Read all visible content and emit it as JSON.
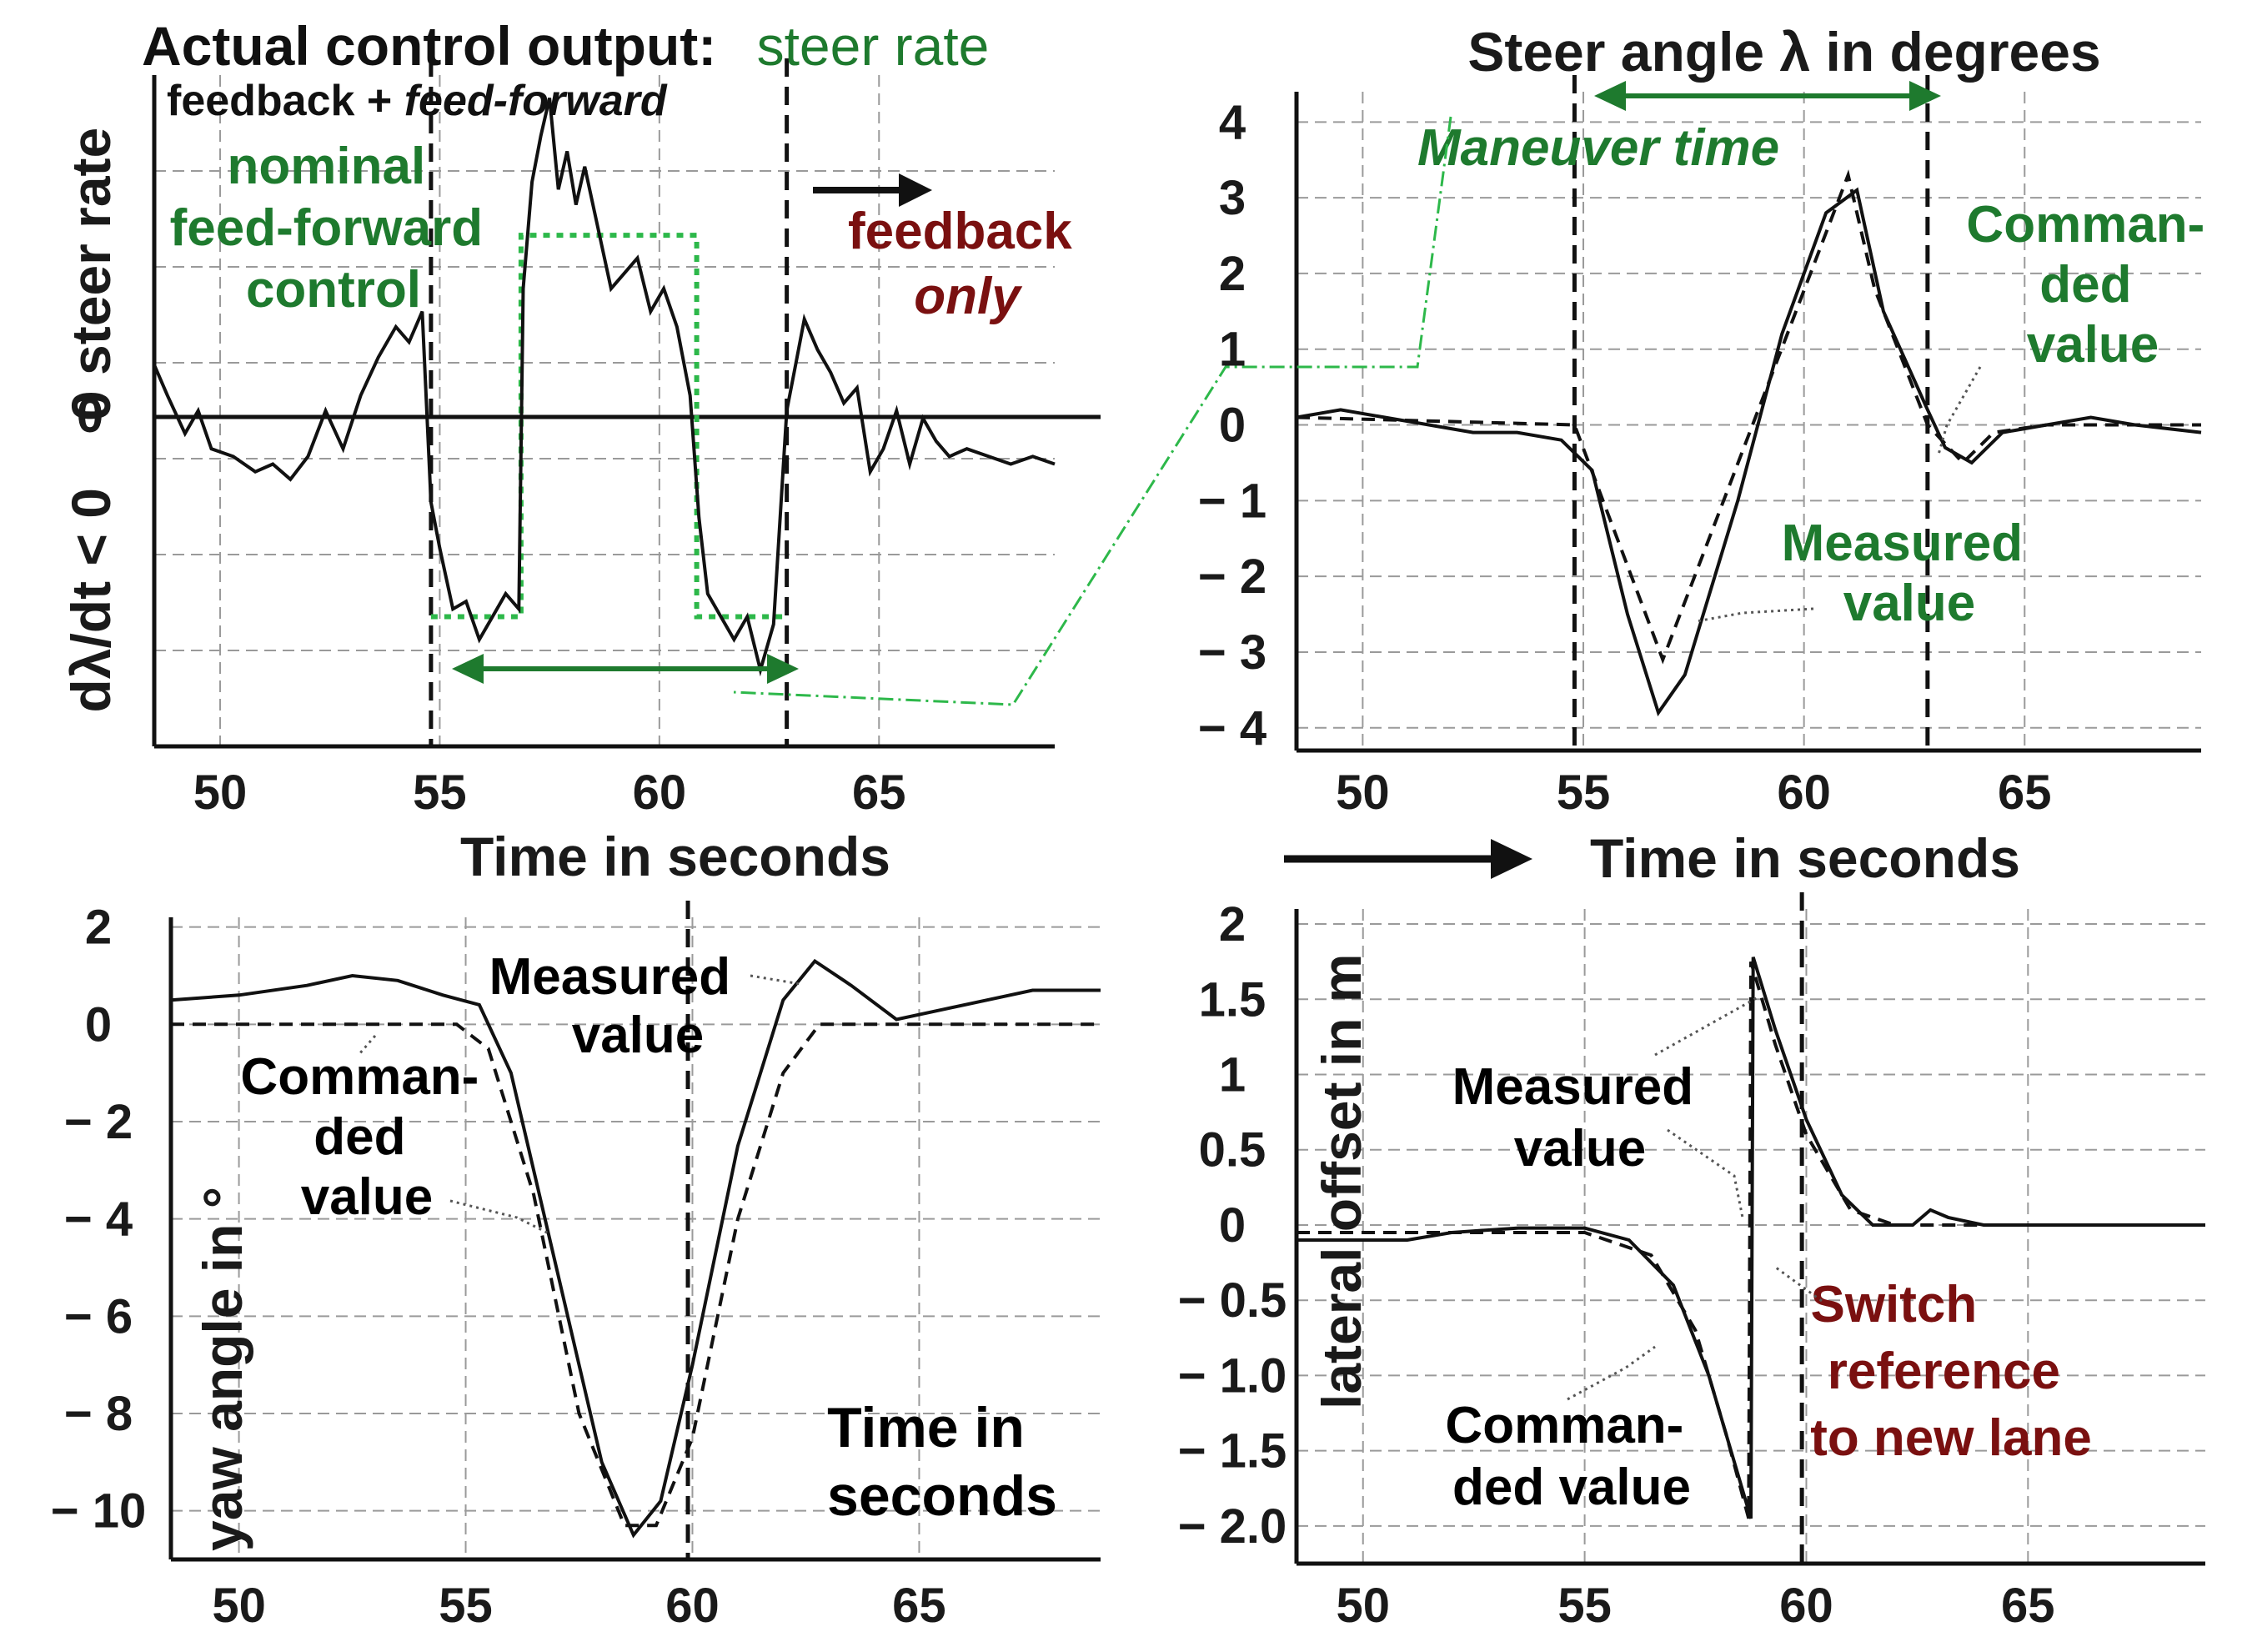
{
  "colors": {
    "green": "#1e7a2e",
    "darkred": "#7a1010",
    "ink": "#111111",
    "grid": "#9a9a9a",
    "bright_green": "#2db84a"
  },
  "chart_data": [
    {
      "id": "steer-rate",
      "type": "line",
      "title": "Actual control output: steer rate",
      "title_parts": {
        "black": "Actual control output:",
        "green": "steer rate"
      },
      "ylabel_top": "0 steer rate",
      "ylabel_bottom": "dλ/dt < 0",
      "xlabel": "Time in seconds",
      "xticks": [
        "50",
        "55",
        "60",
        "65"
      ],
      "xlim": [
        48.5,
        69
      ],
      "ylim": [
        -4.2,
        4.6
      ],
      "zero_label": "0",
      "vlines": [
        54.8,
        62.9
      ],
      "annotations": {
        "fb_ff": {
          "plain": "feedback + ",
          "italic": "feed-forward"
        },
        "nominal": [
          "nominal",
          "feed-forward",
          "control"
        ],
        "feedback_only": [
          "feedback",
          "only"
        ]
      },
      "nominal_feedforward": {
        "x": [
          54.8,
          56.85,
          56.85,
          60.85,
          60.85,
          62.9
        ],
        "y": [
          -2.5,
          -2.5,
          2.5,
          2.5,
          -2.5,
          -2.5
        ]
      },
      "series": [
        {
          "name": "steer rate",
          "x": [
            48.5,
            48.8,
            49.2,
            49.5,
            49.8,
            50.3,
            50.8,
            51.2,
            51.6,
            52.0,
            52.4,
            52.8,
            53.2,
            53.6,
            54.0,
            54.3,
            54.6,
            54.8,
            55.0,
            55.3,
            55.6,
            55.9,
            56.2,
            56.5,
            56.8,
            56.9,
            57.1,
            57.3,
            57.5,
            57.7,
            57.9,
            58.1,
            58.3,
            58.6,
            58.9,
            59.2,
            59.5,
            59.8,
            60.1,
            60.4,
            60.7,
            60.9,
            61.1,
            61.4,
            61.7,
            62.0,
            62.3,
            62.6,
            62.9,
            63.1,
            63.3,
            63.6,
            63.9,
            64.2,
            64.5,
            64.8,
            65.1,
            65.4,
            65.7,
            66.0,
            66.3,
            66.6,
            67.0,
            67.5,
            68.0,
            68.5,
            69.0
          ],
          "values": [
            0.8,
            0.4,
            -0.1,
            0.2,
            -0.3,
            -0.4,
            -0.6,
            -0.5,
            -0.7,
            -0.4,
            0.2,
            -0.3,
            0.4,
            0.9,
            1.3,
            1.1,
            1.5,
            -1.0,
            -1.6,
            -2.4,
            -2.3,
            -2.8,
            -2.5,
            -2.2,
            -2.4,
            1.8,
            3.2,
            3.8,
            4.3,
            3.1,
            3.6,
            2.9,
            3.4,
            2.6,
            1.8,
            2.0,
            2.2,
            1.5,
            1.8,
            1.3,
            0.4,
            -1.2,
            -2.2,
            -2.5,
            -2.8,
            -2.5,
            -3.2,
            -2.6,
            0.2,
            0.8,
            1.4,
            1.0,
            0.7,
            0.3,
            0.5,
            -0.6,
            -0.3,
            0.2,
            -0.5,
            0.1,
            -0.2,
            -0.4,
            -0.3,
            -0.4,
            -0.5,
            -0.4,
            -0.5
          ]
        }
      ]
    },
    {
      "id": "steer-angle",
      "type": "line",
      "title": "Steer angle λ in degrees",
      "xlabel": "Time in seconds",
      "xticks": [
        "50",
        "55",
        "60",
        "65"
      ],
      "yticks": [
        "4",
        "3",
        "2",
        "1",
        "0",
        "− 1",
        "− 2",
        "− 3",
        "− 4"
      ],
      "xlim": [
        48.5,
        69
      ],
      "ylim": [
        -4.3,
        4.4
      ],
      "vlines": [
        54.8,
        62.8
      ],
      "maneuver_label": "Maneuver time",
      "annotations": {
        "commanded": [
          "Comman-",
          "ded",
          "value"
        ],
        "measured": [
          "Measured",
          "value"
        ]
      },
      "series": [
        {
          "name": "Commanded value",
          "style": "dashed",
          "x": [
            48.5,
            54.8,
            56.8,
            61.0,
            61.6,
            62.8,
            63.6,
            64.3,
            65.5,
            69.0
          ],
          "values": [
            0.1,
            0.0,
            -3.1,
            3.3,
            1.8,
            0.0,
            -0.5,
            -0.1,
            0.0,
            0.0
          ]
        },
        {
          "name": "Measured value",
          "style": "solid",
          "x": [
            48.5,
            49.5,
            50.5,
            51.5,
            52.5,
            53.5,
            54.5,
            55.2,
            56.0,
            56.7,
            57.3,
            58.5,
            59.5,
            60.5,
            61.2,
            61.8,
            62.8,
            63.2,
            63.8,
            64.5,
            65.5,
            66.5,
            67.5,
            69.0
          ],
          "values": [
            0.1,
            0.2,
            0.1,
            0.0,
            -0.1,
            -0.1,
            -0.2,
            -0.6,
            -2.5,
            -3.8,
            -3.3,
            -1.0,
            1.2,
            2.8,
            3.1,
            1.5,
            0.2,
            -0.3,
            -0.5,
            -0.1,
            0.0,
            0.1,
            0.0,
            -0.1
          ]
        }
      ]
    },
    {
      "id": "yaw-angle",
      "type": "line",
      "ylabel": "yaw angle in °",
      "xlabel": "Time in seconds",
      "xticks": [
        "50",
        "55",
        "60",
        "65"
      ],
      "yticks": [
        "2",
        "0",
        "− 2",
        "− 4",
        "− 6",
        "− 8",
        "− 10"
      ],
      "xlim": [
        48.5,
        69
      ],
      "ylim": [
        -11,
        2.2
      ],
      "vlines": [
        59.9
      ],
      "annotations": {
        "measured": [
          "Measured",
          "value"
        ],
        "commanded": [
          "Comman-",
          "ded",
          "value"
        ],
        "time": [
          "Time in",
          "seconds"
        ]
      },
      "series": [
        {
          "name": "Commanded value",
          "style": "dashed",
          "x": [
            48.5,
            54.8,
            55.5,
            56.5,
            57.5,
            58.5,
            59.2,
            60.0,
            61.0,
            62.0,
            62.8,
            63.5,
            69.0
          ],
          "values": [
            0.0,
            0.0,
            -0.5,
            -3.5,
            -8.0,
            -10.3,
            -10.3,
            -8.5,
            -4.0,
            -1.0,
            0.0,
            0.0,
            0.0
          ]
        },
        {
          "name": "Measured value",
          "style": "solid",
          "x": [
            48.5,
            50.0,
            51.5,
            52.5,
            53.5,
            54.5,
            55.3,
            56.0,
            57.0,
            58.0,
            58.7,
            59.3,
            60.0,
            61.0,
            62.0,
            62.7,
            63.5,
            64.5,
            65.5,
            66.5,
            67.5,
            69.0
          ],
          "values": [
            0.5,
            0.6,
            0.8,
            1.0,
            0.9,
            0.6,
            0.4,
            -1.0,
            -5.0,
            -9.0,
            -10.5,
            -9.8,
            -7.0,
            -2.5,
            0.5,
            1.3,
            0.8,
            0.1,
            0.3,
            0.5,
            0.7,
            0.7
          ]
        }
      ]
    },
    {
      "id": "lateral-offset",
      "type": "line",
      "ylabel": "lateral offset in m",
      "xticks": [
        "50",
        "55",
        "60",
        "65"
      ],
      "yticks": [
        "2",
        "1.5",
        "1",
        "0.5",
        "0",
        "− 0.5",
        "− 1.0",
        "− 1.5",
        "− 2.0"
      ],
      "xlim": [
        48.5,
        69
      ],
      "ylim": [
        -2.25,
        2.1
      ],
      "vlines": [
        59.9
      ],
      "annotations": {
        "measured": [
          "Measured",
          "value"
        ],
        "commanded": [
          "Comman-",
          "ded value"
        ],
        "switch": [
          "Switch",
          "reference",
          "to new lane"
        ]
      },
      "series": [
        {
          "name": "Commanded value",
          "style": "dashed",
          "x": [
            48.5,
            53.0,
            55.0,
            56.5,
            57.5,
            58.2,
            58.7,
            58.75,
            59.3,
            60.0,
            61.0,
            62.0,
            63.0,
            69.0
          ],
          "values": [
            -0.05,
            -0.05,
            -0.05,
            -0.2,
            -0.7,
            -1.4,
            -1.95,
            1.75,
            1.2,
            0.6,
            0.1,
            0.0,
            0.0,
            0.0
          ]
        },
        {
          "name": "Measured value",
          "style": "solid",
          "x": [
            48.5,
            50.0,
            51.0,
            52.0,
            53.5,
            55.0,
            56.0,
            57.0,
            57.8,
            58.4,
            58.75,
            58.8,
            59.3,
            60.0,
            60.8,
            61.5,
            62.0,
            62.4,
            62.8,
            63.2,
            64.0,
            65.0,
            66.5,
            69.0
          ],
          "values": [
            -0.1,
            -0.1,
            -0.1,
            -0.05,
            -0.02,
            -0.02,
            -0.1,
            -0.4,
            -1.0,
            -1.6,
            -1.95,
            1.78,
            1.3,
            0.7,
            0.2,
            0.0,
            0.0,
            0.0,
            0.1,
            0.05,
            0.0,
            0.0,
            0.0,
            0.0
          ]
        }
      ]
    }
  ]
}
